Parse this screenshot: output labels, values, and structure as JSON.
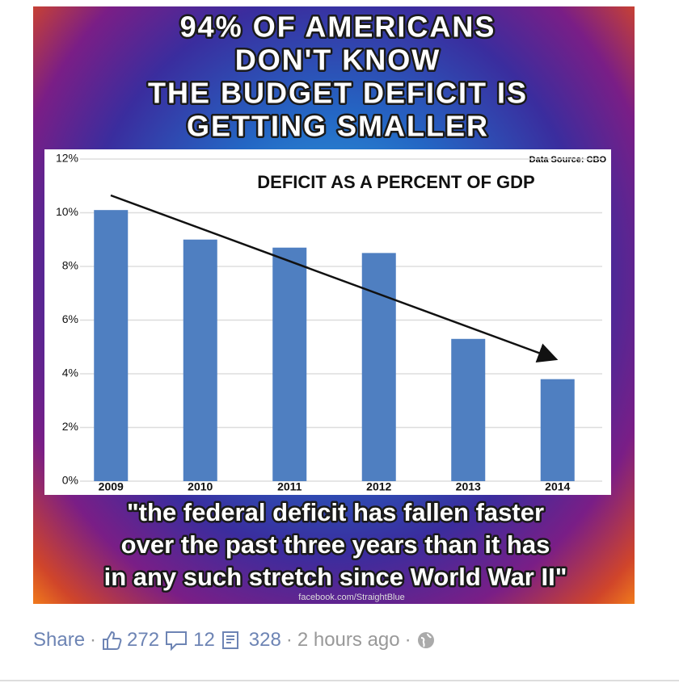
{
  "chart_data": {
    "type": "bar",
    "headline": [
      "94% OF AMERICANS",
      "DON'T KNOW",
      "THE BUDGET DEFICIT IS",
      "GETTING SMALLER"
    ],
    "title": "DEFICIT AS A PERCENT OF GDP",
    "source": "Data Source: CBO",
    "quote": [
      "\"the federal deficit has fallen faster",
      "over the past three years than it has",
      "in any such stretch since World War II\""
    ],
    "watermark": "facebook.com/StraightBlue",
    "categories": [
      "2009",
      "2010",
      "2011",
      "2012",
      "2013",
      "2014"
    ],
    "values": [
      10.1,
      9.0,
      8.7,
      8.5,
      5.3,
      3.8
    ],
    "color": "#4f7fc1",
    "ylim": [
      0,
      12
    ],
    "yticks": [
      {
        "value": 0,
        "label": "0%"
      },
      {
        "value": 2,
        "label": "2%"
      },
      {
        "value": 4,
        "label": "4%"
      },
      {
        "value": 6,
        "label": "6%"
      },
      {
        "value": 8,
        "label": "8%"
      },
      {
        "value": 10,
        "label": "10%"
      },
      {
        "value": 12,
        "label": "12%"
      }
    ],
    "grid": true
  },
  "footer": {
    "share": "Share",
    "likes": "272",
    "comments": "12",
    "shares": "328",
    "time": "2 hours ago"
  }
}
